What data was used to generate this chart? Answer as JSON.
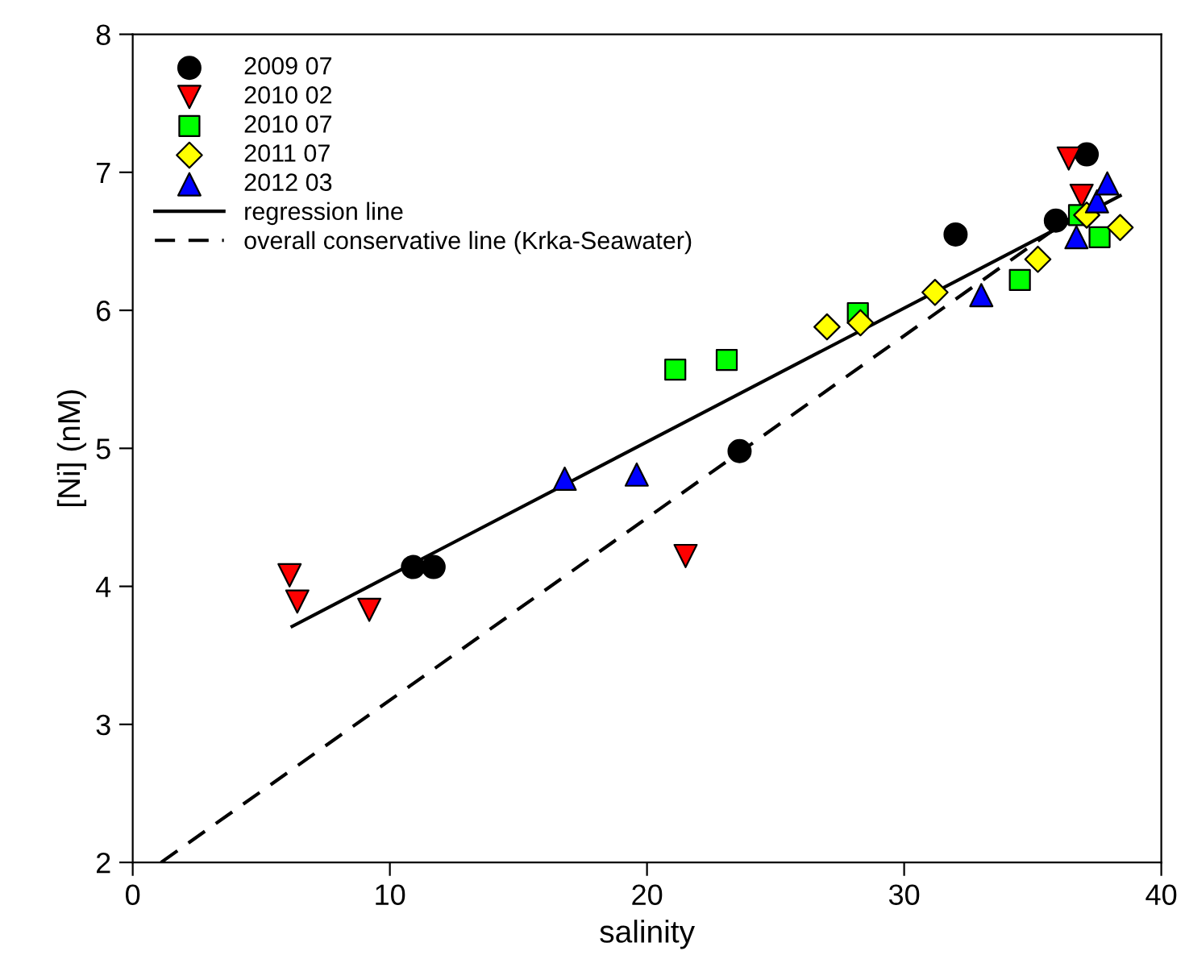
{
  "chart_data": {
    "type": "scatter",
    "xlabel": "salinity",
    "ylabel": "[Ni] (nM)",
    "xlim": [
      0,
      40
    ],
    "xticks": [
      0,
      10,
      20,
      30,
      40
    ],
    "ylim": [
      2,
      8
    ],
    "yticks": [
      2,
      3,
      4,
      5,
      6,
      7,
      8
    ],
    "grid": false,
    "legend": "top left",
    "series": [
      {
        "name": "2009 07",
        "color": "#000000",
        "marker": "circle",
        "x": [
          10.9,
          11.7,
          23.6,
          32.0,
          35.9,
          37.1
        ],
        "values": [
          4.14,
          4.14,
          4.98,
          6.55,
          6.65,
          7.13
        ]
      },
      {
        "name": "2010 02",
        "color": "#ff0000",
        "marker": "triangle_down",
        "x": [
          6.1,
          6.4,
          9.2,
          21.5,
          36.4,
          36.9
        ],
        "values": [
          4.08,
          3.89,
          3.83,
          4.22,
          7.1,
          6.83
        ]
      },
      {
        "name": "2010 07",
        "color": "#00ff00",
        "marker": "square",
        "x": [
          21.1,
          23.1,
          28.2,
          34.5,
          36.8,
          37.6
        ],
        "values": [
          5.57,
          5.64,
          5.98,
          6.22,
          6.69,
          6.53
        ]
      },
      {
        "name": "2011 07",
        "color": "#ffff00",
        "marker": "diamond",
        "x": [
          27.0,
          28.3,
          31.2,
          35.2,
          37.1,
          38.4
        ],
        "values": [
          5.88,
          5.91,
          6.13,
          6.37,
          6.69,
          6.6
        ]
      },
      {
        "name": "2012 03",
        "color": "#0000ff",
        "marker": "triangle",
        "x": [
          16.8,
          19.6,
          33.0,
          36.7,
          37.5,
          37.9
        ],
        "values": [
          4.78,
          4.81,
          6.11,
          6.53,
          6.79,
          6.92
        ]
      },
      {
        "name": "regression line",
        "type": "line",
        "color": "#000000",
        "line_style": "solid",
        "marker": "none",
        "x": [
          6.2,
          38.4
        ],
        "values": [
          3.71,
          6.83
        ]
      },
      {
        "name": "overall conservative line (Krka-Seawater)",
        "type": "line",
        "color": "#000000",
        "line_style": "dashed",
        "marker": "none",
        "x": [
          1.1,
          37.3
        ],
        "values": [
          2.0,
          6.78
        ]
      }
    ]
  }
}
